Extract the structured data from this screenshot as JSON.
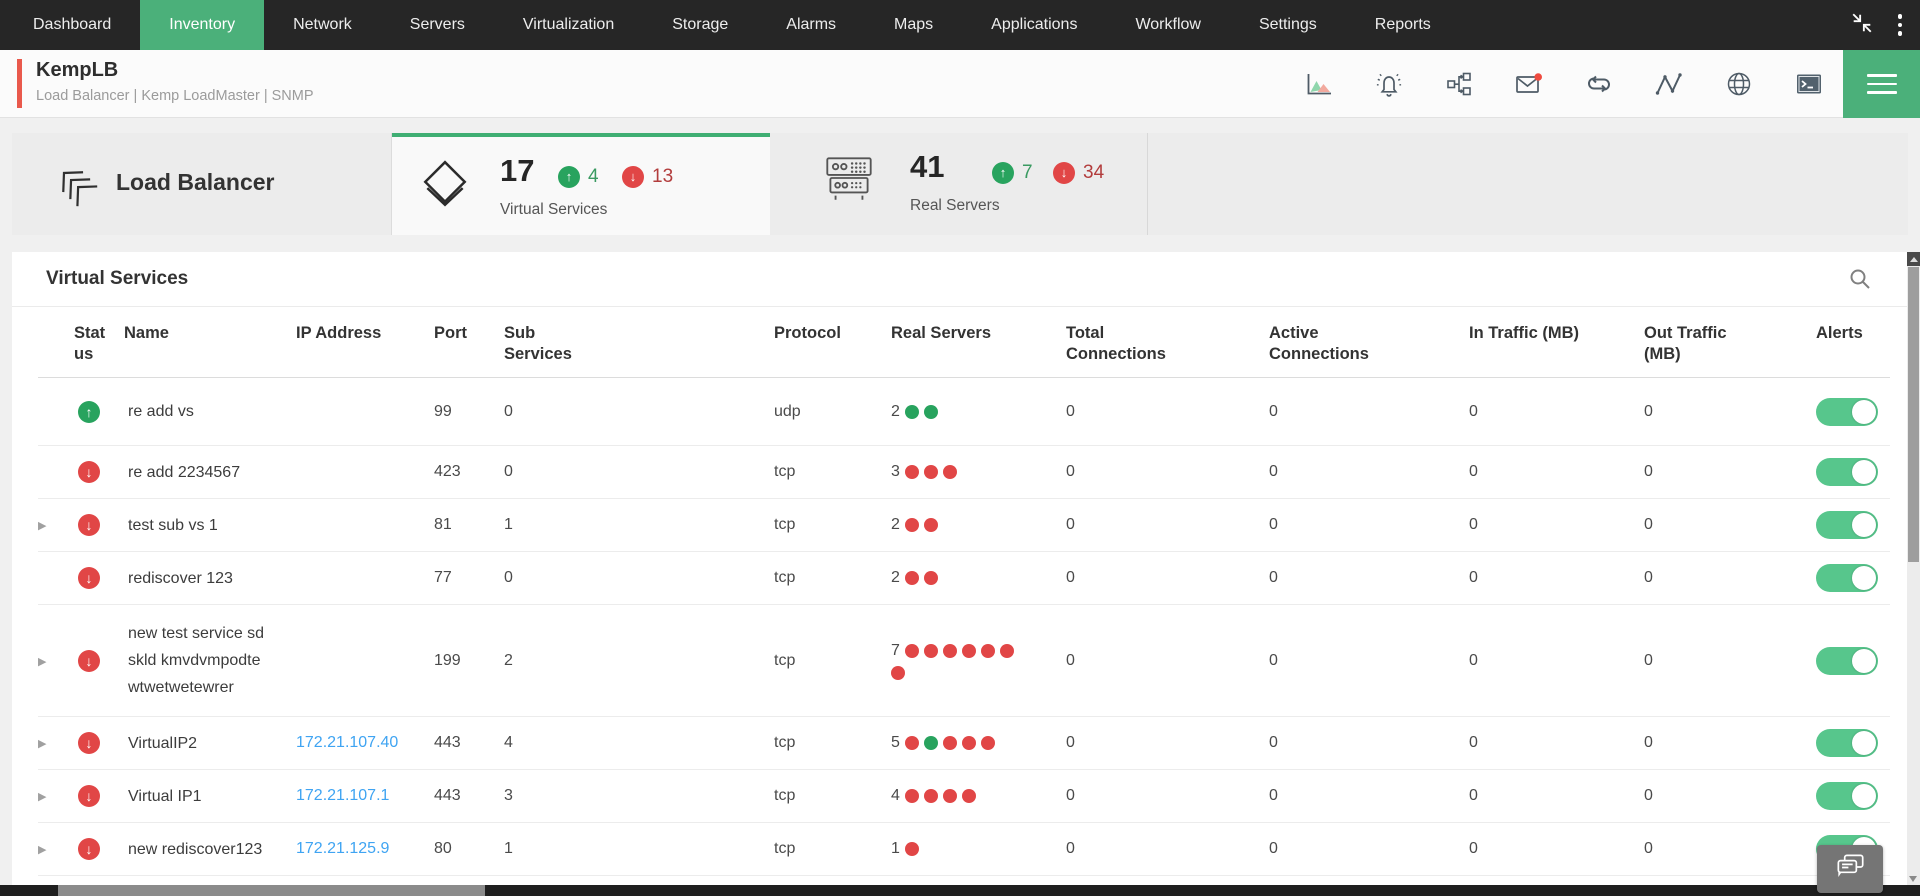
{
  "nav": {
    "items": [
      {
        "label": "Dashboard",
        "active": false
      },
      {
        "label": "Inventory",
        "active": true
      },
      {
        "label": "Network",
        "active": false
      },
      {
        "label": "Servers",
        "active": false
      },
      {
        "label": "Virtualization",
        "active": false
      },
      {
        "label": "Storage",
        "active": false
      },
      {
        "label": "Alarms",
        "active": false
      },
      {
        "label": "Maps",
        "active": false
      },
      {
        "label": "Applications",
        "active": false
      },
      {
        "label": "Workflow",
        "active": false
      },
      {
        "label": "Settings",
        "active": false
      },
      {
        "label": "Reports",
        "active": false
      }
    ],
    "right_icons": [
      "collapse-icon",
      "kebab-menu-icon"
    ]
  },
  "device_header": {
    "title": "KempLB",
    "subtitle": "Load Balancer | Kemp LoadMaster  | SNMP",
    "icons": [
      "performance-chart-icon",
      "alarm-bell-icon",
      "workflow-map-icon",
      "mail-icon",
      "discovery-loop-icon",
      "line-graph-icon",
      "web-globe-icon",
      "terminal-icon",
      "hamburger-menu-icon"
    ],
    "mail_has_badge": true
  },
  "summary": {
    "title": "Load Balancer",
    "tabs": [
      {
        "label": "Virtual Services",
        "count": "17",
        "up_count": "4",
        "down_count": "13",
        "active": true
      },
      {
        "label": "Real Servers",
        "count": "41",
        "up_count": "7",
        "down_count": "34",
        "active": false
      }
    ]
  },
  "table": {
    "title": "Virtual Services",
    "columns": [
      "Status",
      "Name",
      "IP Address",
      "Port",
      "Sub Services",
      "Protocol",
      "Real Servers",
      "Total Connections",
      "Active Connections",
      "In Traffic (MB)",
      "Out Traffic (MB)",
      "Alerts"
    ],
    "rows": [
      {
        "expandable": false,
        "status": "up",
        "name": "re add vs",
        "ip": "",
        "port": "99",
        "sub_services": "0",
        "protocol": "udp",
        "real_server_count": "2",
        "real_server_dots": [
          "up",
          "up"
        ],
        "total_connections": "0",
        "active_connections": "0",
        "in_traffic_mb": "0",
        "out_traffic_mb": "0",
        "alerts_enabled": true
      },
      {
        "expandable": false,
        "status": "down",
        "name": "re add 2234567",
        "ip": "",
        "port": "423",
        "sub_services": "0",
        "protocol": "tcp",
        "real_server_count": "3",
        "real_server_dots": [
          "down",
          "down",
          "down"
        ],
        "total_connections": "0",
        "active_connections": "0",
        "in_traffic_mb": "0",
        "out_traffic_mb": "0",
        "alerts_enabled": true
      },
      {
        "expandable": true,
        "status": "down",
        "name": "test sub vs 1",
        "ip": "",
        "port": "81",
        "sub_services": "1",
        "protocol": "tcp",
        "real_server_count": "2",
        "real_server_dots": [
          "down",
          "down"
        ],
        "total_connections": "0",
        "active_connections": "0",
        "in_traffic_mb": "0",
        "out_traffic_mb": "0",
        "alerts_enabled": true
      },
      {
        "expandable": false,
        "status": "down",
        "name": "rediscover 123",
        "ip": "",
        "port": "77",
        "sub_services": "0",
        "protocol": "tcp",
        "real_server_count": "2",
        "real_server_dots": [
          "down",
          "down"
        ],
        "total_connections": "0",
        "active_connections": "0",
        "in_traffic_mb": "0",
        "out_traffic_mb": "0",
        "alerts_enabled": true
      },
      {
        "expandable": true,
        "status": "down",
        "name": "new test service sd skld kmvdvmpodte wtwetwetewrer",
        "ip": "",
        "port": "199",
        "sub_services": "2",
        "protocol": "tcp",
        "real_server_count": "7",
        "real_server_dots": [
          "down",
          "down",
          "down",
          "down",
          "down",
          "down",
          "down"
        ],
        "total_connections": "0",
        "active_connections": "0",
        "in_traffic_mb": "0",
        "out_traffic_mb": "0",
        "alerts_enabled": true
      },
      {
        "expandable": true,
        "status": "down",
        "name": "VirtualIP2",
        "ip": "172.21.107.40",
        "port": "443",
        "sub_services": "4",
        "protocol": "tcp",
        "real_server_count": "5",
        "real_server_dots": [
          "down",
          "up",
          "down",
          "down",
          "down"
        ],
        "total_connections": "0",
        "active_connections": "0",
        "in_traffic_mb": "0",
        "out_traffic_mb": "0",
        "alerts_enabled": true
      },
      {
        "expandable": true,
        "status": "down",
        "name": "Virtual IP1",
        "ip": "172.21.107.1",
        "port": "443",
        "sub_services": "3",
        "protocol": "tcp",
        "real_server_count": "4",
        "real_server_dots": [
          "down",
          "down",
          "down",
          "down"
        ],
        "total_connections": "0",
        "active_connections": "0",
        "in_traffic_mb": "0",
        "out_traffic_mb": "0",
        "alerts_enabled": true
      },
      {
        "expandable": true,
        "status": "down",
        "name": "new rediscover123",
        "ip": "172.21.125.9",
        "port": "80",
        "sub_services": "1",
        "protocol": "tcp",
        "real_server_count": "1",
        "real_server_dots": [
          "down"
        ],
        "total_connections": "0",
        "active_connections": "0",
        "in_traffic_mb": "0",
        "out_traffic_mb": "0",
        "alerts_enabled": true
      }
    ]
  },
  "colors": {
    "nav_bg": "#262626",
    "nav_active_green": "#4bb07a",
    "status_up_green": "#28a35e",
    "status_down_red": "#e14646",
    "link_blue": "#3fa4f2",
    "toggle_on_green": "#57c68c",
    "accent_red": "#e9594c",
    "mail_badge_red": "#ef4b3f"
  }
}
